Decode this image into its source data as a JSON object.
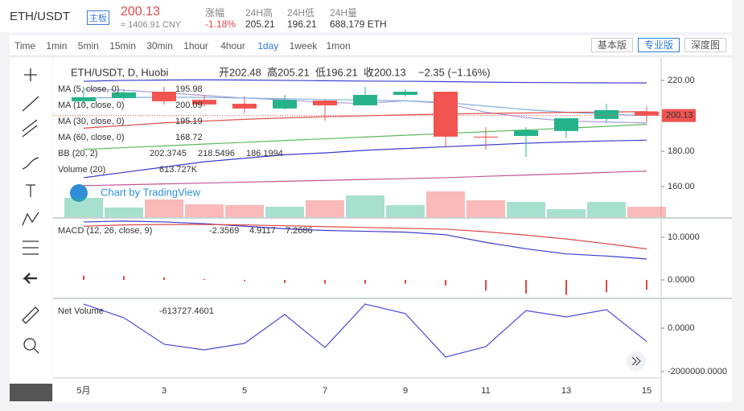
{
  "header": {
    "pair": "ETH/USDT",
    "badge": "主板",
    "price": "200.13",
    "cny": "≈ 1406.91 CNY",
    "stats": [
      {
        "label": "涨幅",
        "value": "-1.18%"
      },
      {
        "label": "24H高",
        "value": "205.21"
      },
      {
        "label": "24H低",
        "value": "196.21"
      },
      {
        "label": "24H量",
        "value": "688,179 ETH"
      }
    ]
  },
  "toolbar": {
    "intervals": [
      "Time",
      "1min",
      "5min",
      "15min",
      "30min",
      "1hour",
      "4hour",
      "1day",
      "1week",
      "1mon"
    ],
    "active_interval": "1day",
    "versions": [
      "基本版",
      "专业版",
      "深度图"
    ],
    "active_version": "专业版"
  },
  "watermark": "Chart by TradingView",
  "chart_data": [
    {
      "type": "candlestick",
      "title": "ETH/USDT, D, Huobi",
      "ohlc_legend": [
        {
          "label": "开",
          "value": 202.48
        },
        {
          "label": "高",
          "value": 205.21
        },
        {
          "label": "低",
          "value": 196.21
        },
        {
          "label": "收",
          "value": 200.13
        }
      ],
      "change": "−2.35 (−1.16%)",
      "categories": [
        "5月",
        null,
        "3",
        null,
        "5",
        null,
        "7",
        null,
        "9",
        null,
        "11",
        null,
        "13",
        null,
        "15"
      ],
      "open": [
        208.2,
        210,
        213.6,
        209,
        206.8,
        204.1,
        208.6,
        205.9,
        211.8,
        213.6,
        188.2,
        188.6,
        191.4,
        198.2,
        202.48
      ],
      "high": [
        216.4,
        215,
        216.4,
        211.8,
        211,
        211.8,
        209,
        216.4,
        215,
        213.6,
        193.6,
        193.6,
        198.6,
        206.8,
        205.21
      ],
      "low": [
        206.4,
        209,
        206.4,
        205,
        201.4,
        203.6,
        197.3,
        205.9,
        210.9,
        182.7,
        180.9,
        176.8,
        187.3,
        196.4,
        196.21
      ],
      "close": [
        210.5,
        213.2,
        208.2,
        206.4,
        204.1,
        209,
        205.9,
        211.8,
        213.6,
        188.2,
        187.7,
        191.8,
        198.6,
        203.2,
        200.13
      ],
      "up_color": "#26b28a",
      "down_color": "#f05350",
      "ylim": [
        142.7,
        232.7
      ],
      "yticks": [
        {
          "value": 160,
          "label": "160.00"
        },
        {
          "value": 180,
          "label": "180.00"
        },
        {
          "value": 200,
          "label": "200.00"
        },
        {
          "value": 220,
          "label": "220.00"
        }
      ],
      "last_price": 200.13,
      "indicators": [
        {
          "name": "MA (5, close, 0)",
          "legend_values": [
            195.98
          ],
          "lines": [
            {
              "color": "#a99ad6",
              "values": [
                215,
                214.5,
                213,
                211.5,
                210,
                209,
                207.5,
                207,
                208.5,
                207,
                202,
                199,
                197,
                196.5,
                195.98
              ]
            }
          ]
        },
        {
          "name": "MA (10, close, 0)",
          "legend_values": [
            200.09
          ],
          "lines": [
            {
              "color": "#7fb0e0",
              "values": [
                210,
                210.3,
                210.5,
                210.4,
                210,
                209.6,
                209.2,
                208.8,
                208.5,
                207.5,
                205.5,
                203.5,
                202,
                201,
                200.09
              ]
            }
          ]
        },
        {
          "name": "MA (30, close, 0)",
          "legend_values": [
            195.19
          ],
          "lines": [
            {
              "color": "#5cb85c",
              "values": [
                181,
                182,
                183,
                184,
                185,
                186,
                187,
                188,
                189,
                190,
                191,
                192,
                193,
                194,
                195.19
              ]
            }
          ]
        },
        {
          "name": "MA (60, close, 0)",
          "legend_values": [
            168.72
          ],
          "lines": [
            {
              "color": "#c25590",
              "values": [
                160.5,
                161,
                161.5,
                162,
                162.5,
                163,
                163.5,
                164,
                164.5,
                165,
                165.8,
                166.5,
                167.2,
                168,
                168.72
              ]
            }
          ]
        },
        {
          "name": "BB (20, 2)",
          "legend_values": [
            202.3745,
            218.5496,
            186.1994
          ],
          "lines": [
            {
              "color": "#e04848",
              "values": [
                193,
                194.5,
                196,
                197,
                198,
                198.8,
                199.5,
                200,
                200.5,
                201,
                201.3,
                201.6,
                201.9,
                202.1,
                202.3745
              ]
            },
            {
              "color": "#3b3bd0",
              "values": [
                219.5,
                220,
                220.2,
                220.3,
                220.2,
                220,
                219.8,
                219.6,
                219.5,
                219.3,
                219,
                218.8,
                218.7,
                218.6,
                218.5496
              ]
            },
            {
              "color": "#3b3bd0",
              "values": [
                165,
                168,
                171,
                174,
                176,
                178,
                179,
                180.5,
                181.5,
                182.5,
                183.5,
                184.5,
                185.2,
                185.8,
                186.1994
              ]
            }
          ]
        }
      ],
      "volume": {
        "name": "Volume (20)",
        "values": [
          1133,
          566,
          1038,
          755,
          708,
          614,
          991,
          1274,
          708,
          1510,
          991,
          897,
          472,
          897,
          613.727
        ],
        "legend_value": {
          "value": 613.727,
          "label": "613.727K"
        }
      }
    },
    {
      "type": "macd",
      "title": "MACD (12, 26, close, 9)",
      "histogram": [
        1.0,
        0.9,
        0.6,
        0.2,
        -0.3,
        -0.7,
        -0.9,
        -0.9,
        -0.9,
        -1.3,
        -2.5,
        -3.2,
        -3.5,
        -2.9,
        -2.3569
      ],
      "macd": [
        13.6,
        13.8,
        13.6,
        13.2,
        12.6,
        12.0,
        11.6,
        11.4,
        11.2,
        10.6,
        8.8,
        7.3,
        6.1,
        5.6,
        4.9117
      ],
      "signal": [
        12.6,
        12.9,
        13.0,
        13.0,
        12.9,
        12.7,
        12.5,
        12.3,
        12.1,
        11.9,
        11.3,
        10.5,
        9.6,
        8.5,
        7.2686
      ],
      "legend_values": [
        -2.3569,
        4.9117,
        7.2686
      ],
      "colors": {
        "histogram": "#e04848",
        "macd": "#3b3bd0",
        "signal": "#e04848"
      },
      "ylim": [
        -4.15,
        14.34
      ],
      "yticks": [
        {
          "value": 10,
          "label": "10.0000"
        },
        {
          "value": 0,
          "label": "0.0000"
        }
      ]
    },
    {
      "type": "line",
      "title": "Net Volume",
      "color": "#4a4ad8",
      "values": [
        1110000,
        480000,
        -740000,
        -1000000,
        -700000,
        630000,
        -890000,
        1110000,
        670000,
        -1330000,
        -850000,
        810000,
        520000,
        850000,
        -613727.4601
      ],
      "legend_value": -613727.4601,
      "ylim": [
        -2296000,
        1333000
      ],
      "yticks": [
        {
          "value": 0,
          "label": "0.0000"
        },
        {
          "value": -2000000,
          "label": "-2000000.0000"
        }
      ]
    }
  ]
}
